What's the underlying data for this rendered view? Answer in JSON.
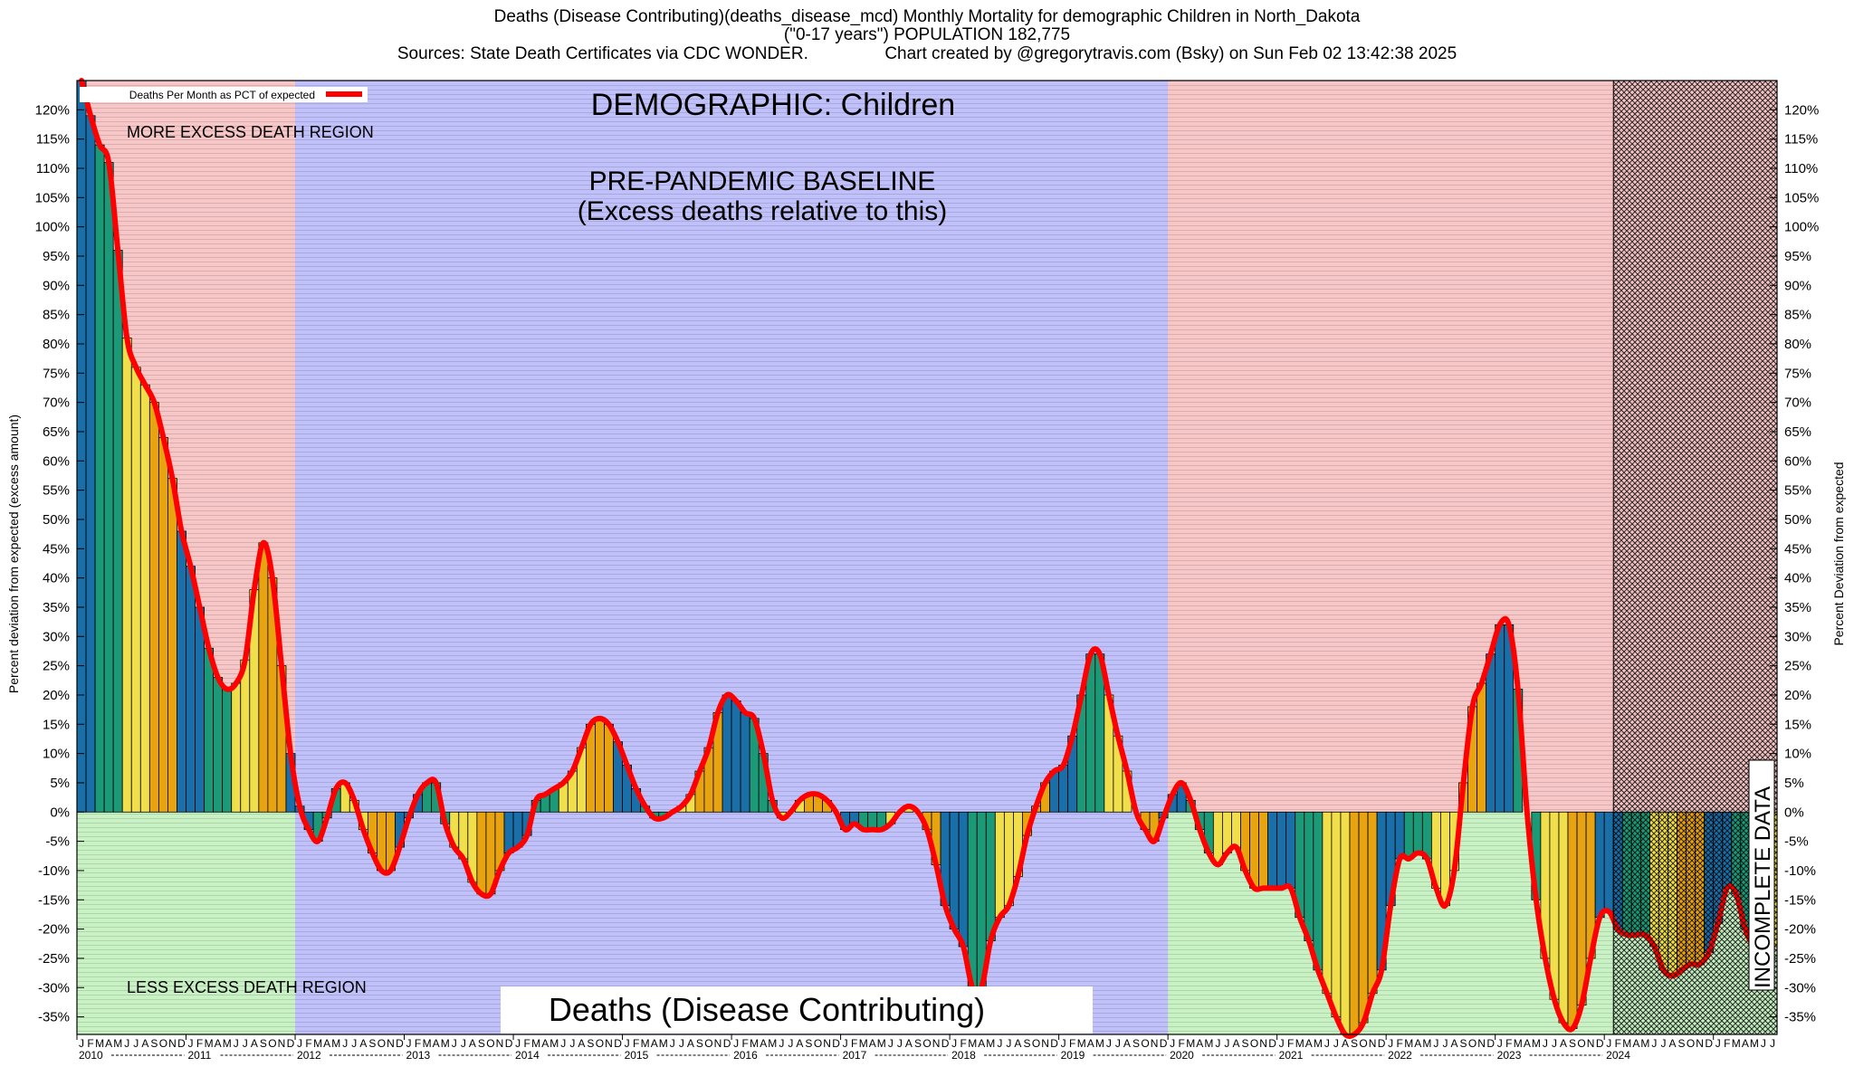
{
  "header": {
    "line1": "Deaths (Disease Contributing)(deaths_disease_mcd) Monthly Mortality for demographic Children in North_Dakota",
    "line2": "(\"0-17 years\") POPULATION 182,775",
    "line3": "Sources: State Death Certificates via CDC WONDER.                Chart created by @gregorytravis.com (Bsky) on Sun Feb 02 13:42:38 2025"
  },
  "legend": {
    "label": "Deaths Per Month as PCT of expected",
    "color": "#ff0000"
  },
  "annotations": {
    "demographic": "DEMOGRAPHIC: Children",
    "baseline_line1": "PRE-PANDEMIC BASELINE",
    "baseline_line2": "(Excess deaths relative to this)",
    "more_region": "MORE EXCESS DEATH REGION",
    "less_region": "LESS EXCESS DEATH REGION",
    "incomplete": "INCOMPLETE DATA",
    "bottom_label": "Deaths (Disease Contributing)"
  },
  "colors": {
    "more_region": "#f7c6c6",
    "less_region": "#c8f2c4",
    "baseline_region": "#c0c0fa",
    "line": "#ff0000",
    "season_winter": "#1a6fa8",
    "season_spring": "#1c9a78",
    "season_summer": "#f0df4a",
    "season_fall": "#e8a410"
  },
  "chart_data": {
    "type": "bar",
    "ylabel_left": "Percent deviation from expected (excess amount)",
    "ylabel_right": "Percent Deviation from expected",
    "ylim": [
      -38,
      125
    ],
    "y_ticks": [
      -35,
      -30,
      -25,
      -20,
      -15,
      -10,
      -5,
      0,
      5,
      10,
      15,
      20,
      25,
      30,
      35,
      40,
      45,
      50,
      55,
      60,
      65,
      70,
      75,
      80,
      85,
      90,
      95,
      100,
      105,
      110,
      115,
      120
    ],
    "y_tick_suffix": "%",
    "x_start": "2010-01",
    "month_letters": [
      "J",
      "F",
      "M",
      "A",
      "M",
      "J",
      "J",
      "A",
      "S",
      "O",
      "N",
      "D"
    ],
    "years": [
      "2010",
      "2011",
      "2012",
      "2013",
      "2014",
      "2015",
      "2016",
      "2017",
      "2018",
      "2019",
      "2020",
      "2021",
      "2022",
      "2023",
      "2024"
    ],
    "baseline_period": [
      "2012-01",
      "2019-12"
    ],
    "incomplete_from": "2024-02",
    "series": [
      {
        "name": "Deaths Per Month as PCT of expected",
        "values": [
          125,
          119,
          114,
          111,
          96,
          81,
          76,
          73,
          70,
          64,
          57,
          48,
          42,
          35,
          28,
          23,
          21,
          22,
          26,
          38,
          46,
          40,
          25,
          10,
          1,
          -3,
          -5,
          -1,
          4,
          5,
          2,
          -3,
          -7,
          -10,
          -10,
          -6,
          -1,
          3,
          5,
          5,
          -2,
          -6,
          -8,
          -12,
          -14,
          -14,
          -10,
          -7,
          -6,
          -4,
          2,
          3,
          4,
          5,
          7,
          11,
          15,
          16,
          15,
          12,
          8,
          4,
          1,
          -1,
          -1,
          0,
          1,
          3,
          7,
          11,
          17,
          20,
          19,
          17,
          16,
          10,
          2,
          -1,
          0,
          2,
          3,
          3,
          2,
          0,
          -3,
          -2,
          -3,
          -3,
          -3,
          -2,
          0,
          1,
          0,
          -3,
          -9,
          -16,
          -20,
          -23,
          -30,
          -30,
          -22,
          -18,
          -16,
          -11,
          -4,
          1,
          5,
          7,
          8,
          13,
          20,
          27,
          27,
          20,
          13,
          7,
          0,
          -3,
          -5,
          -1,
          3,
          5,
          2,
          -3,
          -7,
          -9,
          -7,
          -6,
          -10,
          -13,
          -13,
          -13,
          -13,
          -13,
          -18,
          -22,
          -27,
          -31,
          -35,
          -38,
          -38,
          -36,
          -31,
          -27,
          -16,
          -8,
          -8,
          -7,
          -8,
          -13,
          -16,
          -10,
          5,
          18,
          22,
          27,
          32,
          32,
          21,
          0,
          -15,
          -25,
          -32,
          -36,
          -37,
          -33,
          -25,
          -18,
          -17,
          -20,
          -21,
          -21,
          -21,
          -23,
          -27,
          -28,
          -27,
          -26,
          -26,
          -24,
          -19,
          -13,
          -14,
          -20,
          -23,
          -23,
          -23
        ]
      }
    ]
  }
}
